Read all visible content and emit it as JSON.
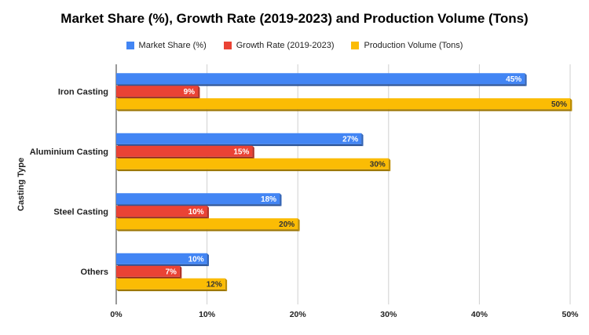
{
  "chart_data": {
    "type": "bar",
    "orientation": "horizontal",
    "title": "Market Share (%), Growth Rate (2019-2023) and Production Volume (Tons)",
    "ylabel": "Casting Type",
    "xlabel": "",
    "xlim": [
      0,
      50
    ],
    "xticks": [
      "0%",
      "10%",
      "20%",
      "30%",
      "40%",
      "50%"
    ],
    "grid": true,
    "legend_position": "top",
    "categories": [
      "Iron Casting",
      "Aluminium Casting",
      "Steel Casting",
      "Others"
    ],
    "series": [
      {
        "name": "Market Share (%)",
        "color": "#4285F4",
        "values": [
          45,
          27,
          18,
          10
        ],
        "labels": [
          "45%",
          "27%",
          "18%",
          "10%"
        ]
      },
      {
        "name": "Growth Rate (2019-2023)",
        "color": "#EA4335",
        "values": [
          9,
          15,
          10,
          7
        ],
        "labels": [
          "9%",
          "15%",
          "10%",
          "7%"
        ]
      },
      {
        "name": "Production Volume (Tons)",
        "color": "#FBBC04",
        "values": [
          50,
          30,
          20,
          12
        ],
        "labels": [
          "50%",
          "30%",
          "20%",
          "12%"
        ]
      }
    ]
  }
}
